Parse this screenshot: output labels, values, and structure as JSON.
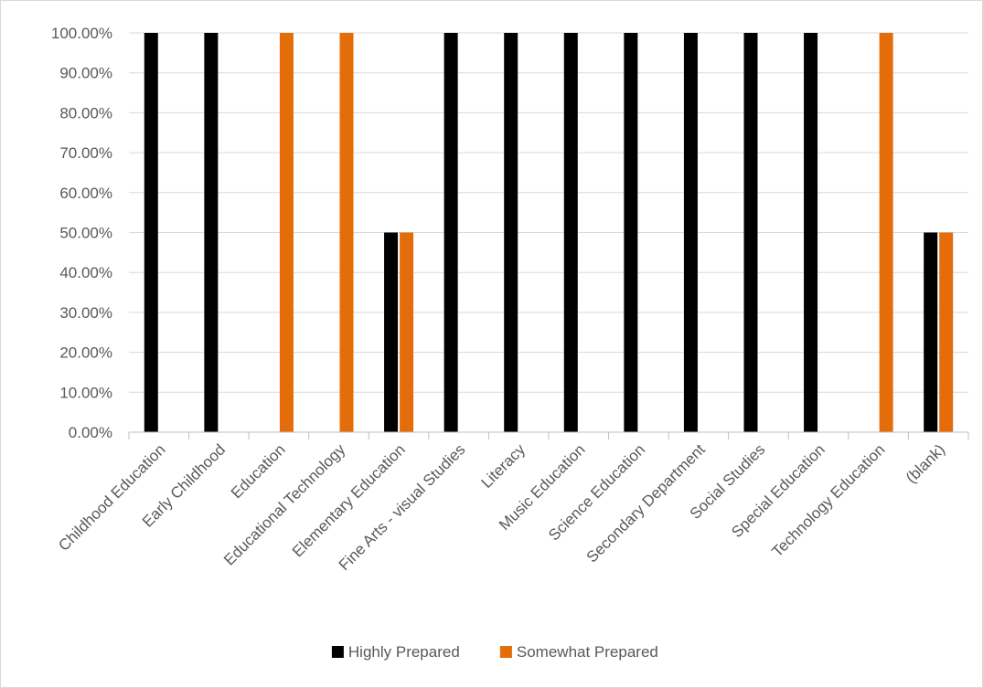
{
  "chart_data": {
    "type": "bar",
    "title": "",
    "xlabel": "",
    "ylabel": "",
    "ylim": [
      0,
      100
    ],
    "y_tick_step": 10,
    "y_tick_format": "percent_2dp",
    "grid": true,
    "legend_position": "bottom",
    "categories": [
      "Childhood Education",
      "Early Childhood",
      "Education",
      "Educational Technology",
      "Elementary Education",
      "Fine Arts - visual Studies",
      "Literacy",
      "Music Education",
      "Science Education",
      "Secondary Department",
      "Social Studies",
      "Special Education",
      "Technology Education",
      "(blank)"
    ],
    "series": [
      {
        "name": "Highly Prepared",
        "color": "#000000",
        "values": [
          100,
          100,
          0,
          0,
          50,
          100,
          100,
          100,
          100,
          100,
          100,
          100,
          0,
          50
        ]
      },
      {
        "name": "Somewhat Prepared",
        "color": "#e46c0a",
        "values": [
          0,
          0,
          100,
          100,
          50,
          0,
          0,
          0,
          0,
          0,
          0,
          0,
          100,
          50
        ]
      }
    ]
  }
}
